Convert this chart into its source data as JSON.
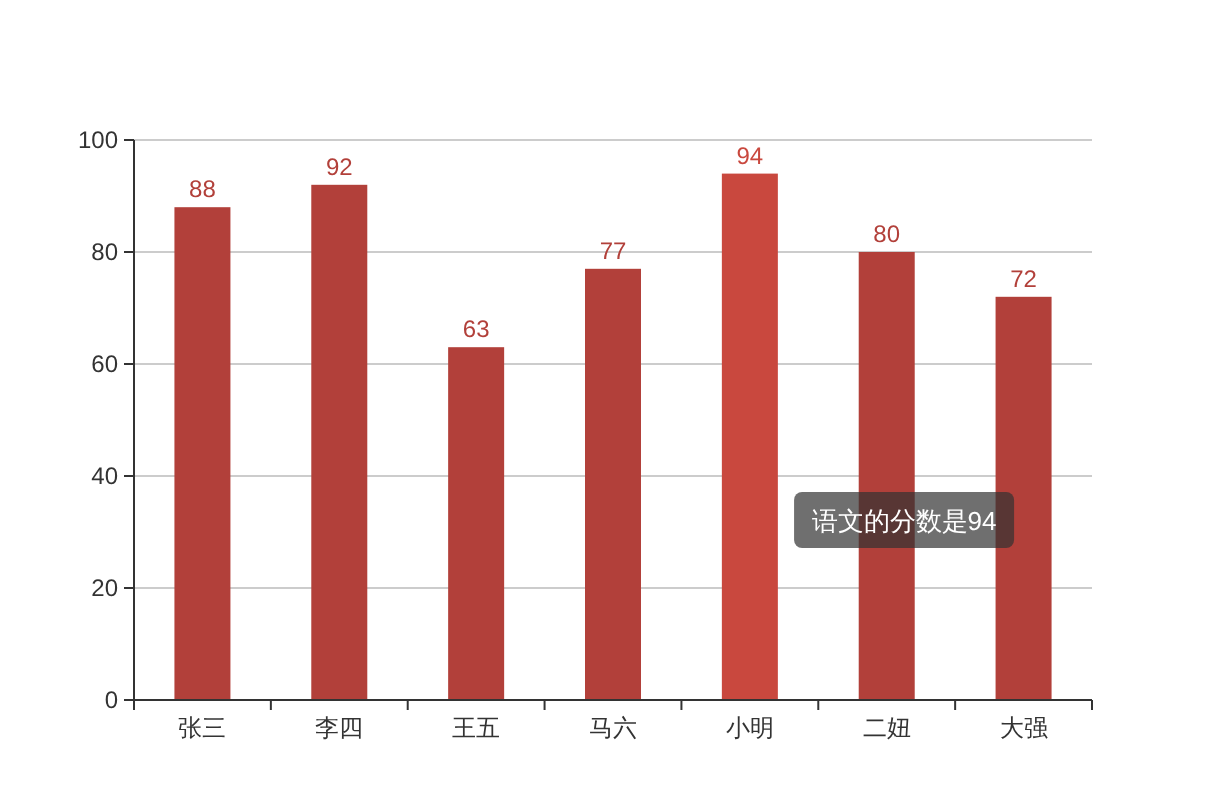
{
  "chart_data": {
    "type": "bar",
    "categories": [
      "张三",
      "李四",
      "王五",
      "马六",
      "小明",
      "二妞",
      "大强"
    ],
    "values": [
      88,
      92,
      63,
      77,
      94,
      80,
      72
    ],
    "colors": [
      "#b2403a",
      "#b2403a",
      "#b2403a",
      "#b2403a",
      "#c9483e",
      "#b2403a",
      "#b2403a"
    ],
    "ylim": [
      0,
      100
    ],
    "yticks": [
      0,
      20,
      40,
      60,
      80,
      100
    ],
    "grid": "y",
    "data_labels": true,
    "annotations": [
      "语文的分数是94"
    ]
  }
}
